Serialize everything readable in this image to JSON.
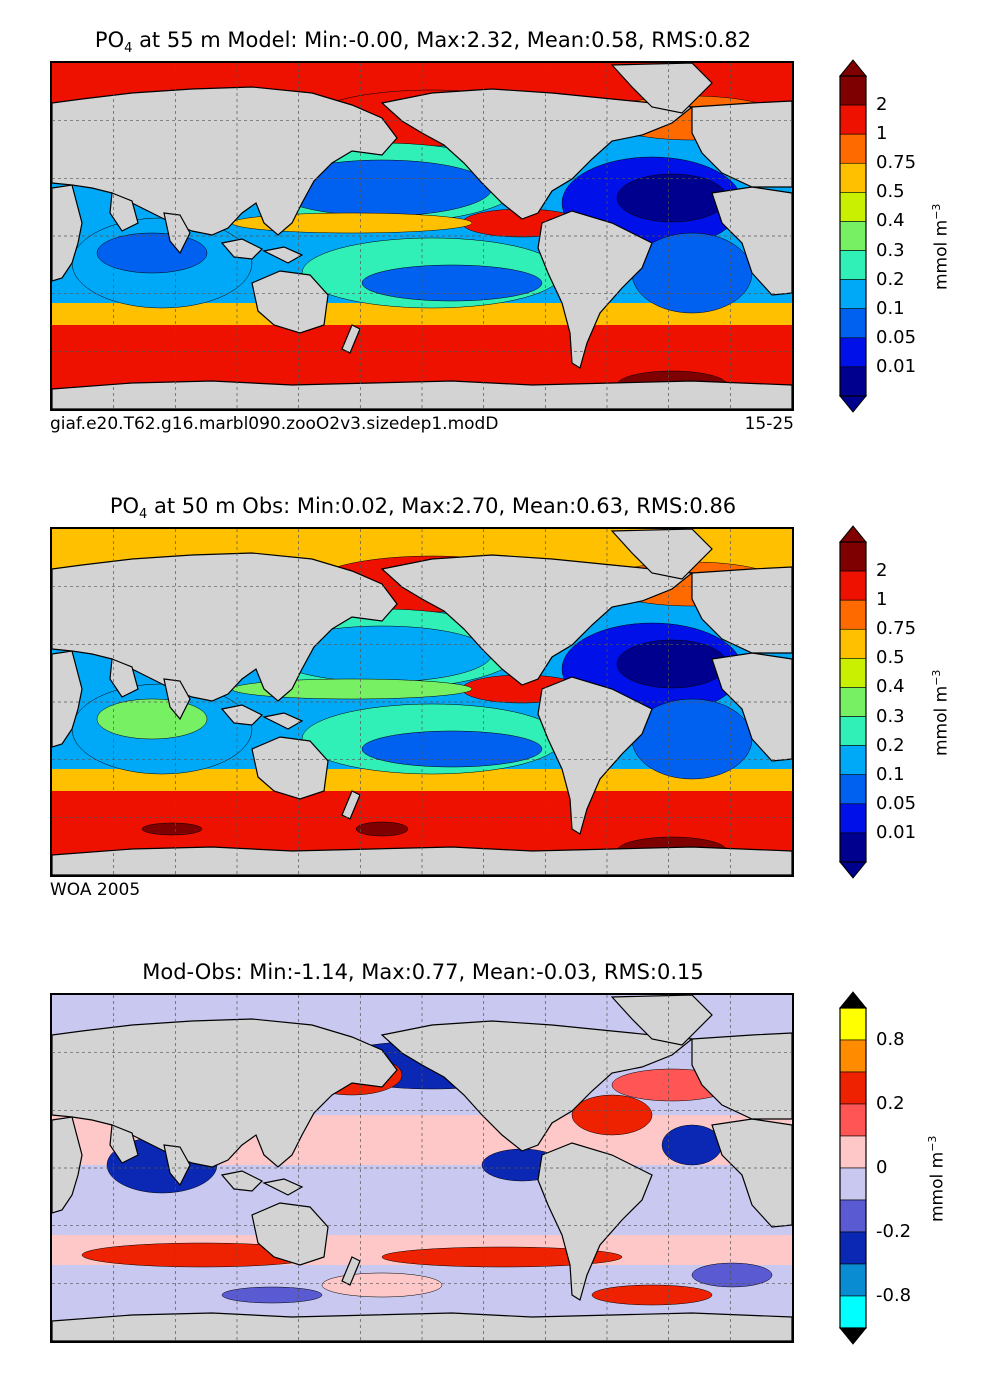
{
  "panels": [
    {
      "id": "model",
      "title_main": "PO",
      "title_sub": "4",
      "title_rest": " at 55 m Model: Min:-0.00, Max:2.32, Mean:0.58, RMS:0.82",
      "footer_left": "giaf.e20.T62.g16.marbl090.zooO2v3.sizedep1.modD",
      "footer_right": "15-25",
      "colorbar": {
        "units": "mmol m",
        "units_exp": "−3",
        "labels": [
          "2",
          "1",
          "0.75",
          "0.5",
          "0.4",
          "0.3",
          "0.2",
          "0.1",
          "0.05",
          "0.01"
        ],
        "colors": [
          "#7f0000",
          "#ee1100",
          "#ff6a00",
          "#ffc000",
          "#c8f000",
          "#78f064",
          "#30f0b8",
          "#00a8f8",
          "#0060f0",
          "#0010e8",
          "#00008f"
        ],
        "over_color": "#7f0000",
        "under_color": "#00008f"
      }
    },
    {
      "id": "obs",
      "title_main": "PO",
      "title_sub": "4",
      "title_rest": " at 50 m Obs: Min:0.02, Max:2.70, Mean:0.63, RMS:0.86",
      "footer_left": "WOA 2005",
      "footer_right": "",
      "colorbar": {
        "units": "mmol m",
        "units_exp": "−3",
        "labels": [
          "2",
          "1",
          "0.75",
          "0.5",
          "0.4",
          "0.3",
          "0.2",
          "0.1",
          "0.05",
          "0.01"
        ],
        "colors": [
          "#7f0000",
          "#ee1100",
          "#ff6a00",
          "#ffc000",
          "#c8f000",
          "#78f064",
          "#30f0b8",
          "#00a8f8",
          "#0060f0",
          "#0010e8",
          "#00008f"
        ],
        "over_color": "#7f0000",
        "under_color": "#00008f"
      }
    },
    {
      "id": "diff",
      "title_main": "Mod-Obs: Min:-1.14, Max:0.77, Mean:-0.03, RMS:0.15",
      "title_sub": "",
      "title_rest": "",
      "footer_left": "",
      "footer_right": "",
      "colorbar": {
        "units": "mmol m",
        "units_exp": "−3",
        "labels": [
          "0.8",
          "0.2",
          "0",
          "-0.2",
          "-0.8"
        ],
        "colors": [
          "#ffff00",
          "#ff8c00",
          "#ee2200",
          "#ff5555",
          "#ffc8c8",
          "#c8c8f0",
          "#5a5ad2",
          "#0a28b4",
          "#0a8cd2",
          "#00ffff"
        ],
        "over_color": "#000000",
        "under_color": "#000000"
      }
    }
  ],
  "chart_data": [
    {
      "type": "heatmap",
      "title": "PO4 at 55 m Model: Min:-0.00, Max:2.32, Mean:0.58, RMS:0.82",
      "variable": "PO4",
      "depth_m": 55,
      "source": "Model",
      "stats": {
        "min": -0.0,
        "max": 2.32,
        "mean": 0.58,
        "rms": 0.82
      },
      "colorbar_levels": [
        0.01,
        0.05,
        0.1,
        0.2,
        0.3,
        0.4,
        0.5,
        0.75,
        1,
        2
      ],
      "units": "mmol m^-3",
      "case_name": "giaf.e20.T62.g16.marbl090.zooO2v3.sizedep1.modD",
      "years": "15-25"
    },
    {
      "type": "heatmap",
      "title": "PO4 at 50 m Obs: Min:0.02, Max:2.70, Mean:0.63, RMS:0.86",
      "variable": "PO4",
      "depth_m": 50,
      "source": "WOA 2005",
      "stats": {
        "min": 0.02,
        "max": 2.7,
        "mean": 0.63,
        "rms": 0.86
      },
      "colorbar_levels": [
        0.01,
        0.05,
        0.1,
        0.2,
        0.3,
        0.4,
        0.5,
        0.75,
        1,
        2
      ],
      "units": "mmol m^-3"
    },
    {
      "type": "heatmap",
      "title": "Mod-Obs: Min:-1.14, Max:0.77, Mean:-0.03, RMS:0.15",
      "stats": {
        "min": -1.14,
        "max": 0.77,
        "mean": -0.03,
        "rms": 0.15
      },
      "colorbar_levels": [
        -0.8,
        -0.2,
        0,
        0.2,
        0.8
      ],
      "units": "mmol m^-3"
    }
  ]
}
